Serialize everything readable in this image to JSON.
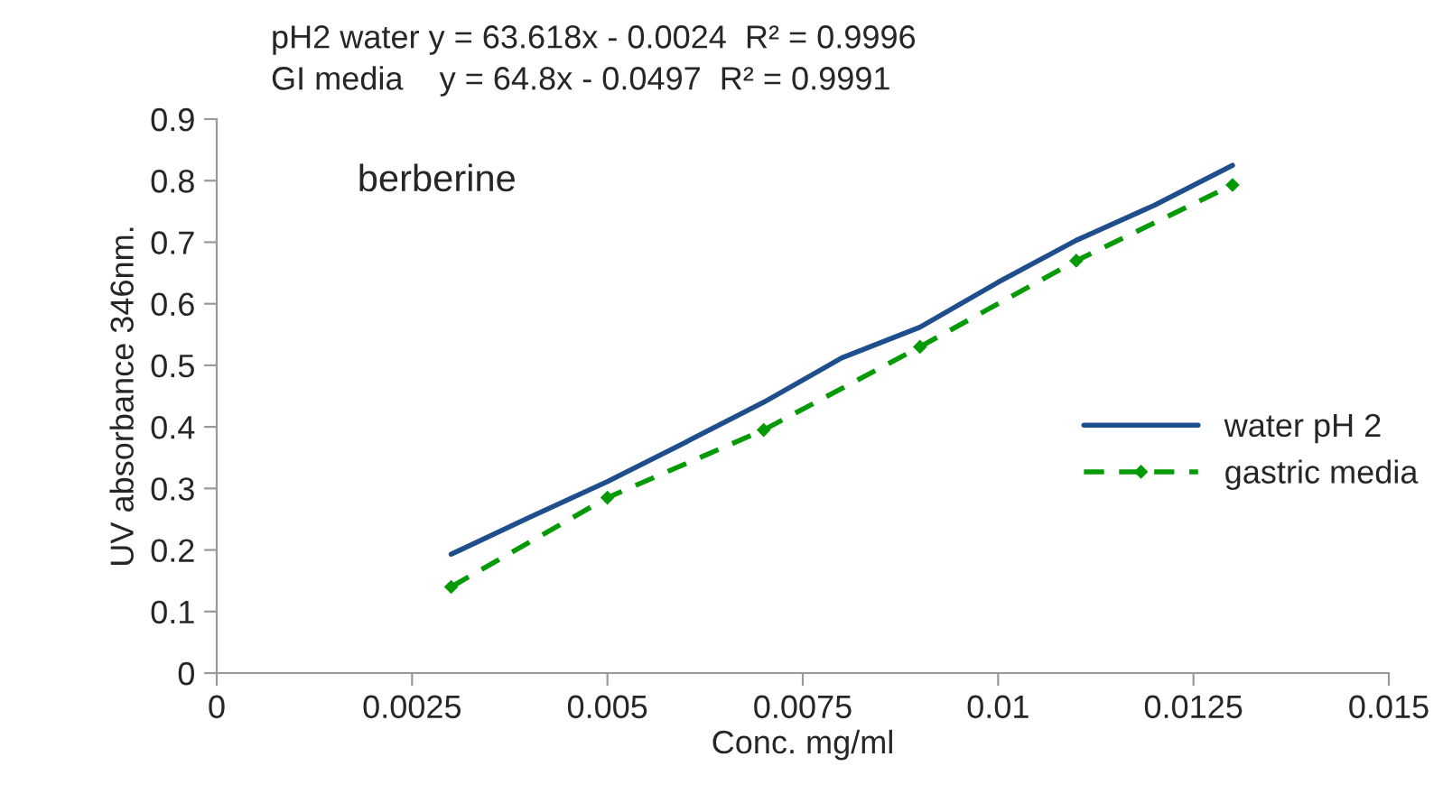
{
  "chart_data": {
    "type": "line",
    "title": "pH2 water y = 63.618x - 0.0024  R² = 0.9996",
    "subtitle": "GI media    y = 64.8x - 0.0497  R² = 0.9991",
    "xlabel": "Conc. mg/ml",
    "ylabel": "UV absorbance 346nm.",
    "annotations": [
      "berberine"
    ],
    "series": [
      {
        "name": "water pH 2",
        "color": "#1f4e8c",
        "line_style": "solid",
        "marker": "none",
        "x": [
          0.003,
          0.004,
          0.005,
          0.006,
          0.007,
          0.008,
          0.009,
          0.01,
          0.011,
          0.012,
          0.013
        ],
        "values": [
          0.193,
          0.253,
          0.311,
          0.375,
          0.44,
          0.512,
          0.562,
          0.635,
          0.703,
          0.76,
          0.825
        ]
      },
      {
        "name": "gastric media",
        "color": "#069a06",
        "line_style": "dashed",
        "marker": "diamond",
        "x": [
          0.003,
          0.005,
          0.007,
          0.009,
          0.011,
          0.013
        ],
        "values": [
          0.14,
          0.285,
          0.395,
          0.53,
          0.67,
          0.793
        ]
      }
    ],
    "xlim": [
      0,
      0.015
    ],
    "xticks": [
      0,
      0.0025,
      0.005,
      0.0075,
      0.01,
      0.0125,
      0.015
    ],
    "ylim": [
      0,
      0.9
    ],
    "yticks": [
      0,
      0.1,
      0.2,
      0.3,
      0.4,
      0.5,
      0.6,
      0.7,
      0.8,
      0.9
    ],
    "grid": false,
    "legend": "right"
  }
}
